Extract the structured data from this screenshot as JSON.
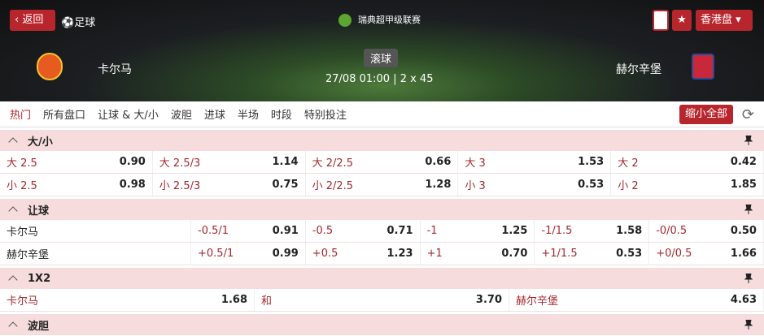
{
  "header": {
    "back": "返回",
    "sport": "足球",
    "league": "瑞典超甲级联赛",
    "odds_format": "香港盘"
  },
  "match": {
    "home": "卡尔马",
    "away": "赫尔辛堡",
    "status": "滚球",
    "time": "27/08 01:00 | 2 x 45"
  },
  "tabs": [
    "热门",
    "所有盘口",
    "让球 & 大/小",
    "波胆",
    "进球",
    "半场",
    "时段",
    "特别投注"
  ],
  "collapse_all": "缩小全部",
  "sections": [
    {
      "title": "大/小",
      "rows": [
        [
          {
            "label": "大 2.5",
            "odds": "0.90"
          },
          {
            "label": "大 2.5/3",
            "odds": "1.14"
          },
          {
            "label": "大 2/2.5",
            "odds": "0.66"
          },
          {
            "label": "大 3",
            "odds": "1.53"
          },
          {
            "label": "大 2",
            "odds": "0.42"
          }
        ],
        [
          {
            "label": "小 2.5",
            "odds": "0.98"
          },
          {
            "label": "小 2.5/3",
            "odds": "0.75"
          },
          {
            "label": "小 2/2.5",
            "odds": "1.28"
          },
          {
            "label": "小 3",
            "odds": "0.53"
          },
          {
            "label": "小 2",
            "odds": "1.85"
          }
        ]
      ]
    },
    {
      "title": "让球",
      "rows": [
        {
          "team": "卡尔马",
          "cells": [
            {
              "label": "-0.5/1",
              "odds": "0.91"
            },
            {
              "label": "-0.5",
              "odds": "0.71"
            },
            {
              "label": "-1",
              "odds": "1.25"
            },
            {
              "label": "-1/1.5",
              "odds": "1.58"
            },
            {
              "label": "-0/0.5",
              "odds": "0.50"
            }
          ]
        },
        {
          "team": "赫尔辛堡",
          "cells": [
            {
              "label": "+0.5/1",
              "odds": "0.99"
            },
            {
              "label": "+0.5",
              "odds": "1.23"
            },
            {
              "label": "+1",
              "odds": "0.70"
            },
            {
              "label": "+1/1.5",
              "odds": "0.53"
            },
            {
              "label": "+0/0.5",
              "odds": "1.66"
            }
          ]
        }
      ]
    },
    {
      "title": "1X2",
      "rows": [
        [
          {
            "label": "卡尔马",
            "odds": "1.68"
          },
          {
            "label": "和",
            "odds": "3.70"
          },
          {
            "label": "赫尔辛堡",
            "odds": "4.63"
          }
        ]
      ]
    },
    {
      "title": "波胆",
      "rows": []
    }
  ]
}
